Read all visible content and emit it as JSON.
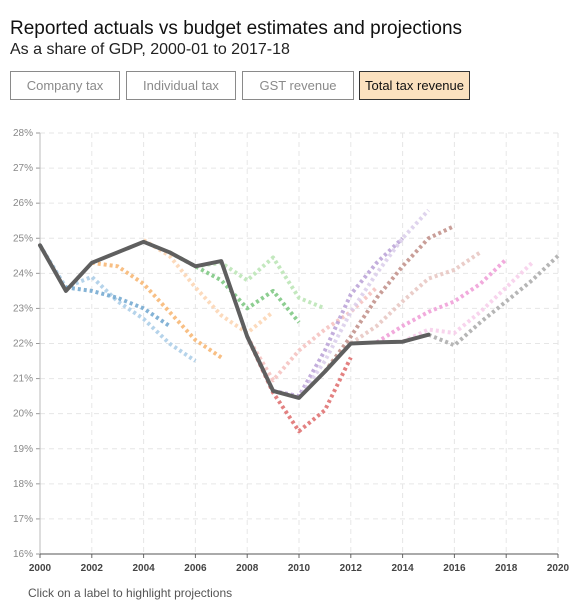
{
  "header": {
    "title": "Reported actuals vs budget estimates and projections",
    "subtitle": "As a share of GDP, 2000-01 to 2017-18"
  },
  "tabs": [
    {
      "label": "Company tax",
      "active": false
    },
    {
      "label": "Individual tax",
      "active": false
    },
    {
      "label": "GST revenue",
      "active": false
    },
    {
      "label": "Total tax revenue",
      "active": true
    }
  ],
  "footer": {
    "text": "Click on a label to highlight projections"
  },
  "colors": {
    "accent_active_tab": "#fbe1bf",
    "actual_line": "#5f5f5f",
    "grid": "#e6e6e6"
  },
  "chart_data": {
    "type": "line",
    "xlabel": "",
    "ylabel": "",
    "xlim": [
      2000,
      2020
    ],
    "ylim": [
      16,
      28
    ],
    "x_ticks": [
      "2000",
      "2002",
      "2004",
      "2006",
      "2008",
      "2010",
      "2012",
      "2014",
      "2016",
      "2018",
      "2020"
    ],
    "y_ticks": [
      "16%",
      "17%",
      "18%",
      "19%",
      "20%",
      "21%",
      "22%",
      "23%",
      "24%",
      "25%",
      "26%",
      "27%",
      "28%"
    ],
    "grid": true,
    "series": [
      {
        "role": "actual",
        "color": "#5f5f5f",
        "x": [
          2000,
          2001,
          2002,
          2003,
          2004,
          2005,
          2006,
          2007,
          2008,
          2009,
          2010,
          2011,
          2012,
          2013,
          2014,
          2015
        ],
        "y": [
          24.8,
          23.5,
          24.3,
          24.6,
          24.9,
          24.6,
          24.2,
          24.35,
          22.2,
          20.65,
          20.45,
          21.2,
          22.0,
          22.03,
          22.05,
          22.25
        ]
      },
      {
        "role": "projection",
        "color": "#a8cbe6",
        "x": [
          2000,
          2001,
          2002,
          2003,
          2004,
          2005,
          2006
        ],
        "y": [
          24.8,
          23.6,
          23.9,
          23.2,
          22.7,
          22.0,
          21.5
        ]
      },
      {
        "role": "projection",
        "color": "#6fa6cf",
        "x": [
          2001,
          2002,
          2003,
          2004,
          2005
        ],
        "y": [
          23.6,
          23.5,
          23.3,
          23.0,
          22.5
        ]
      },
      {
        "role": "projection",
        "color": "#f7b46e",
        "x": [
          2002,
          2003,
          2004,
          2005,
          2006,
          2007
        ],
        "y": [
          24.3,
          24.2,
          23.7,
          22.9,
          22.1,
          21.6
        ]
      },
      {
        "role": "projection",
        "color": "#fbd3b0",
        "x": [
          2004,
          2005,
          2006,
          2007,
          2008,
          2009
        ],
        "y": [
          24.95,
          24.5,
          23.6,
          22.8,
          22.3,
          22.9
        ]
      },
      {
        "role": "projection",
        "color": "#79c57e",
        "x": [
          2005,
          2006,
          2007,
          2008,
          2009,
          2010
        ],
        "y": [
          24.6,
          24.2,
          23.8,
          23.0,
          23.5,
          22.6
        ]
      },
      {
        "role": "projection",
        "color": "#b9e4b3",
        "x": [
          2006,
          2007,
          2008,
          2009,
          2010,
          2011
        ],
        "y": [
          24.2,
          24.3,
          23.8,
          24.45,
          23.3,
          23.0
        ]
      },
      {
        "role": "projection",
        "color": "#de6b6b",
        "x": [
          2008,
          2009,
          2010,
          2011,
          2012
        ],
        "y": [
          22.2,
          20.6,
          19.5,
          20.1,
          21.6
        ]
      },
      {
        "role": "projection",
        "color": "#f5c0bd",
        "x": [
          2008,
          2009,
          2010,
          2011,
          2012,
          2013
        ],
        "y": [
          22.2,
          20.95,
          21.8,
          22.4,
          22.9,
          23.6
        ]
      },
      {
        "role": "projection",
        "color": "#b9a0d6",
        "x": [
          2009,
          2010,
          2011,
          2012,
          2013,
          2014
        ],
        "y": [
          20.65,
          20.5,
          21.8,
          23.4,
          24.3,
          25.0
        ]
      },
      {
        "role": "projection",
        "color": "#d9cdea",
        "x": [
          2010,
          2011,
          2012,
          2013,
          2014,
          2015
        ],
        "y": [
          20.45,
          21.5,
          22.9,
          24.0,
          25.0,
          25.8
        ]
      },
      {
        "role": "projection",
        "color": "#c08d86",
        "x": [
          2011,
          2012,
          2013,
          2014,
          2015,
          2016
        ],
        "y": [
          21.2,
          22.2,
          23.3,
          24.2,
          25.0,
          25.35
        ]
      },
      {
        "role": "projection",
        "color": "#e6c4bf",
        "x": [
          2012,
          2013,
          2014,
          2015,
          2016,
          2017
        ],
        "y": [
          22.0,
          22.5,
          23.2,
          23.85,
          24.1,
          24.6
        ]
      },
      {
        "role": "projection",
        "color": "#ef9bd6",
        "x": [
          2013,
          2014,
          2015,
          2016,
          2017,
          2018
        ],
        "y": [
          22.03,
          22.5,
          22.9,
          23.2,
          23.7,
          24.4
        ]
      },
      {
        "role": "projection",
        "color": "#f7cdea",
        "x": [
          2014,
          2015,
          2016,
          2017,
          2018,
          2019
        ],
        "y": [
          22.05,
          22.4,
          22.3,
          22.9,
          23.6,
          24.3
        ]
      },
      {
        "role": "projection",
        "color": "#a9a9a9",
        "x": [
          2015,
          2016,
          2017,
          2018,
          2019,
          2020
        ],
        "y": [
          22.25,
          21.95,
          22.6,
          23.2,
          23.8,
          24.5
        ]
      }
    ]
  }
}
